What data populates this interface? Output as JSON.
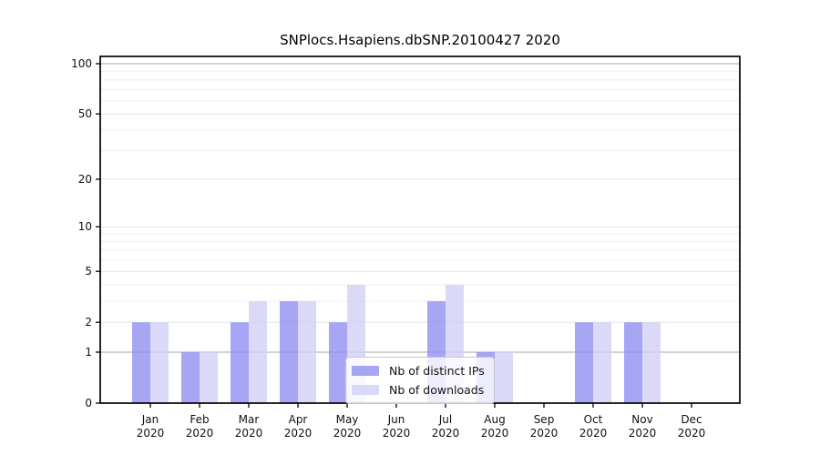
{
  "figure": {
    "background_color": "#ffffff",
    "spine_color": "#000000"
  },
  "chart_data": {
    "type": "bar",
    "title": "SNPlocs.Hsapiens.dbSNP.20100427 2020",
    "x_month_labels": [
      "Jan",
      "Feb",
      "Mar",
      "Apr",
      "May",
      "Jun",
      "Jul",
      "Aug",
      "Sep",
      "Oct",
      "Nov",
      "Dec"
    ],
    "x_year_label": "2020",
    "series": [
      {
        "name": "Nb of distinct IPs",
        "color": "#9090f2",
        "values": [
          2,
          1,
          2,
          3,
          2,
          0,
          3,
          1,
          0,
          2,
          2,
          0
        ]
      },
      {
        "name": "Nb of downloads",
        "color": "#d1d1f6",
        "values": [
          2,
          1,
          3,
          3,
          4,
          0,
          4,
          1,
          0,
          2,
          2,
          0
        ]
      }
    ],
    "bar_alpha": 0.8,
    "y_scale": "log1p",
    "ylim": [
      0,
      110
    ],
    "y_ticks": [
      0,
      1,
      2,
      5,
      10,
      20,
      50,
      100
    ],
    "grid": "on",
    "grid_minor_values": [
      3,
      4,
      6,
      7,
      8,
      9,
      30,
      40,
      60,
      70,
      80,
      90
    ],
    "grid_major_values": [
      2,
      5,
      10,
      20,
      50
    ],
    "grid_emph_values": [
      1,
      100
    ],
    "grid_minor_color": "#efefef",
    "grid_major_color": "#e2e2e2",
    "grid_emph_color": "#b7b7b7",
    "legend_position": "lower-center"
  }
}
